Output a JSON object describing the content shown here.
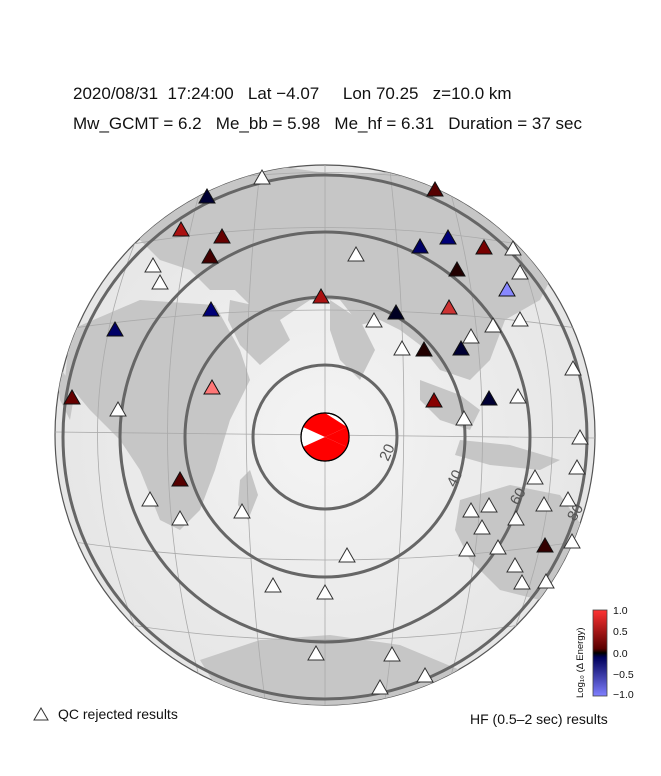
{
  "header": {
    "line1": "2020/08/31  17:24:00   Lat −4.07     Lon 70.25   z=10.0 km",
    "line2": "Mw_GCMT = 6.2   Me_bb = 5.98   Me_hf = 6.31   Duration = 37 sec"
  },
  "rings": {
    "labels": [
      "20",
      "40",
      "60",
      "80"
    ]
  },
  "colorbar": {
    "title": "Log₁₀ (Δ Energy)",
    "ticks": [
      "1.0",
      "0.5",
      "0.0",
      "−0.5",
      "−1.0"
    ]
  },
  "legend": {
    "rejected_label": "QC rejected results",
    "hf_label": "HF (0.5–2 sec) results"
  },
  "colors": {
    "positive": "#ff0000",
    "neutral": "#000000",
    "negative": "#0000ff",
    "beachball": "#ff0000"
  }
}
